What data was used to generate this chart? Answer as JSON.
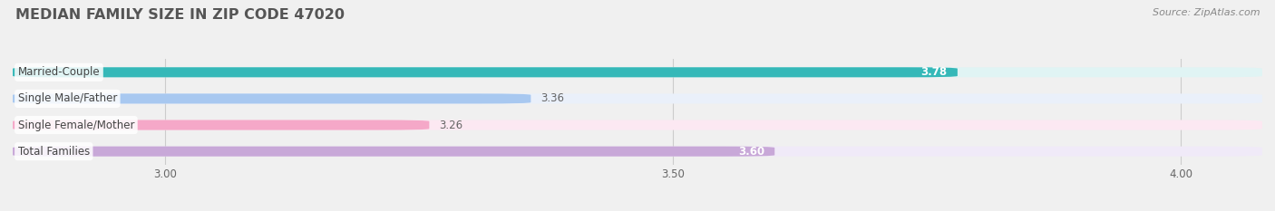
{
  "title": "MEDIAN FAMILY SIZE IN ZIP CODE 47020",
  "source": "Source: ZipAtlas.com",
  "categories": [
    "Married-Couple",
    "Single Male/Father",
    "Single Female/Mother",
    "Total Families"
  ],
  "values": [
    3.78,
    3.36,
    3.26,
    3.6
  ],
  "bar_colors": [
    "#35b8b8",
    "#a8c8f0",
    "#f5a8c8",
    "#c8a8d8"
  ],
  "bar_bg_colors": [
    "#e0f4f4",
    "#eaf0fa",
    "#fce8f2",
    "#f0eaf8"
  ],
  "xlim": [
    2.85,
    4.08
  ],
  "xticks": [
    3.0,
    3.5,
    4.0
  ],
  "value_inside": [
    true,
    false,
    false,
    true
  ],
  "value_colors_inside": [
    "#ffffff",
    "#888888",
    "#888888",
    "#ffffff"
  ],
  "background_color": "#f0f0f0",
  "bar_height": 0.38,
  "title_fontsize": 11.5,
  "label_fontsize": 8.5,
  "value_fontsize": 8.5,
  "tick_fontsize": 8.5
}
